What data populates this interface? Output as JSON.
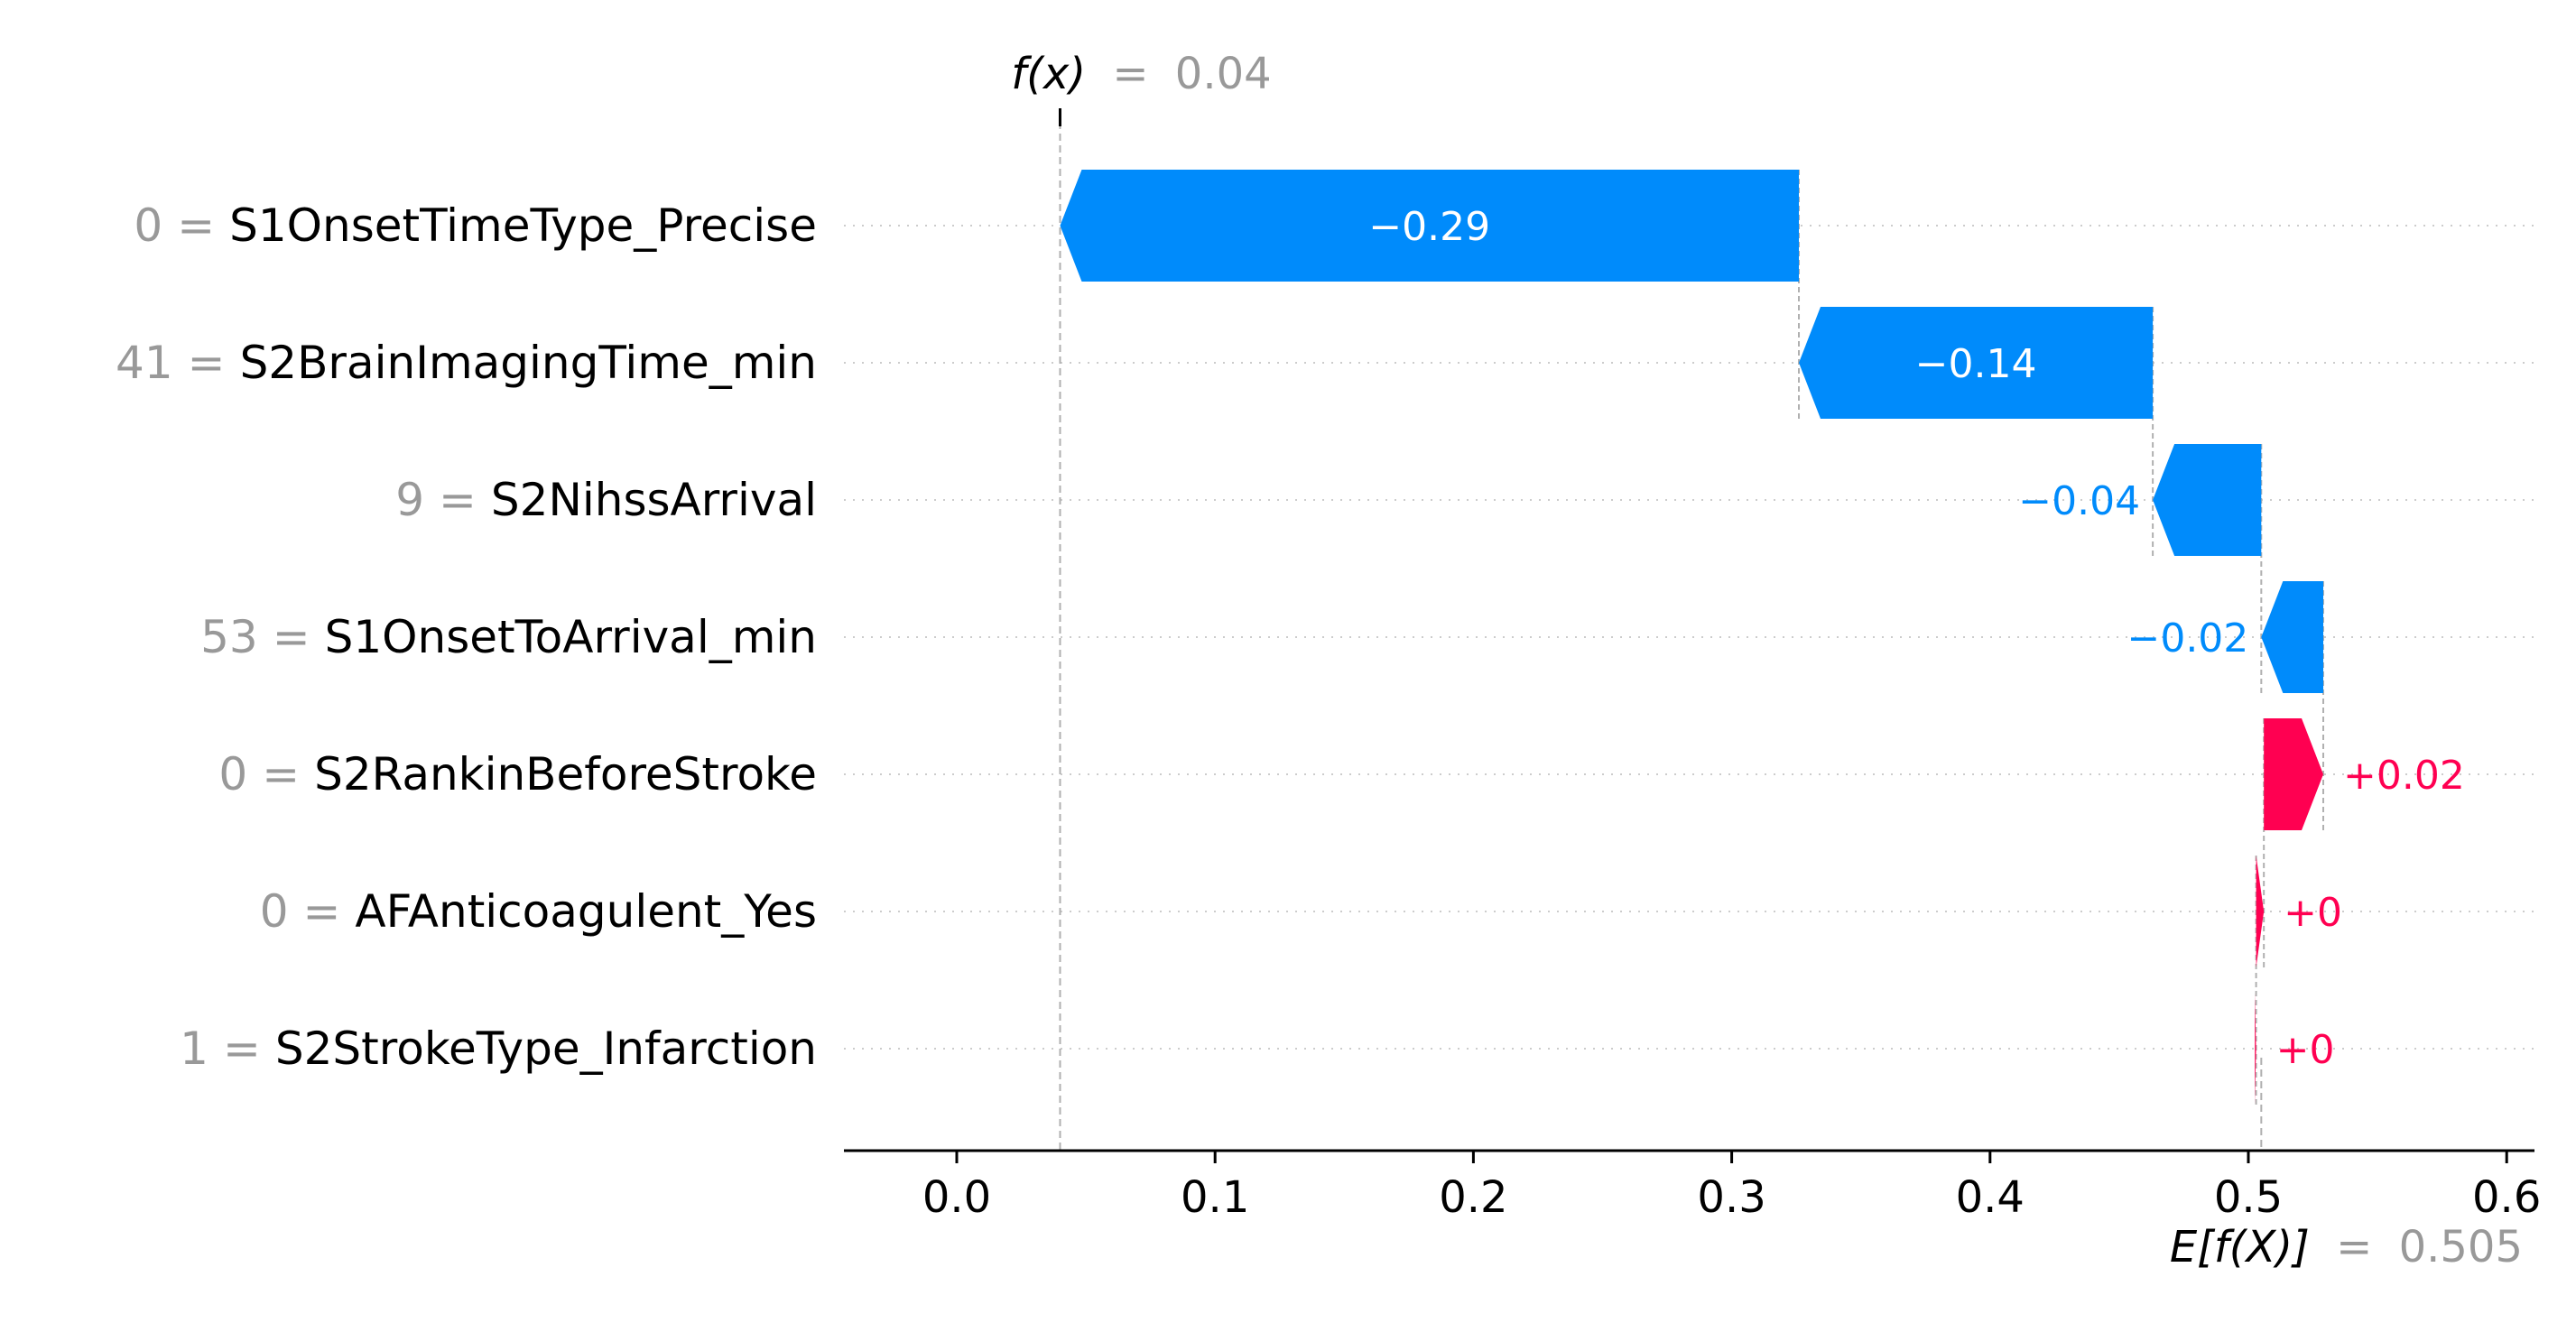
{
  "chart_data": {
    "type": "waterfall",
    "title": "",
    "xlabel": "",
    "ylabel": "",
    "xlim": [
      -0.044,
      0.612
    ],
    "x_ticks": [
      {
        "value": 0.0,
        "label": "0.0"
      },
      {
        "value": 0.1,
        "label": "0.1"
      },
      {
        "value": 0.2,
        "label": "0.2"
      },
      {
        "value": 0.3,
        "label": "0.3"
      },
      {
        "value": 0.4,
        "label": "0.4"
      },
      {
        "value": 0.5,
        "label": "0.5"
      },
      {
        "value": 0.6,
        "label": "0.6"
      }
    ],
    "grid": "dotted row lines",
    "colors": {
      "negative": "#008bfb",
      "positive": "#ff0051",
      "muted": "#999999",
      "axis": "#000000"
    },
    "fx": {
      "prefix": "f(x)",
      "eq": "=",
      "value": 0.04,
      "label": "0.04"
    },
    "efx": {
      "prefix": "E[f(X)]",
      "eq": "=",
      "value": 0.505,
      "label": "0.505"
    },
    "features": [
      {
        "feature_value": "0",
        "eq": "=",
        "name": "S1OnsetTimeType_Precise",
        "shap": -0.29,
        "label": "−0.29",
        "start": 0.326,
        "end": 0.04
      },
      {
        "feature_value": "41",
        "eq": "=",
        "name": "S2BrainImagingTime_min",
        "shap": -0.14,
        "label": "−0.14",
        "start": 0.463,
        "end": 0.326
      },
      {
        "feature_value": "9",
        "eq": "=",
        "name": "S2NihssArrival",
        "shap": -0.04,
        "label": "−0.04",
        "start": 0.505,
        "end": 0.463
      },
      {
        "feature_value": "53",
        "eq": "=",
        "name": "S1OnsetToArrival_min",
        "shap": -0.02,
        "label": "−0.02",
        "start": 0.529,
        "end": 0.505
      },
      {
        "feature_value": "0",
        "eq": "=",
        "name": "S2RankinBeforeStroke",
        "shap": 0.02,
        "label": "+0.02",
        "start": 0.506,
        "end": 0.529
      },
      {
        "feature_value": "0",
        "eq": "=",
        "name": "AFAnticoagulent_Yes",
        "shap": 0.003,
        "label": "+0",
        "start": 0.503,
        "end": 0.506
      },
      {
        "feature_value": "1",
        "eq": "=",
        "name": "S2StrokeType_Infarction",
        "shap": 0.0005,
        "label": "+0",
        "start": 0.5025,
        "end": 0.503
      }
    ]
  }
}
